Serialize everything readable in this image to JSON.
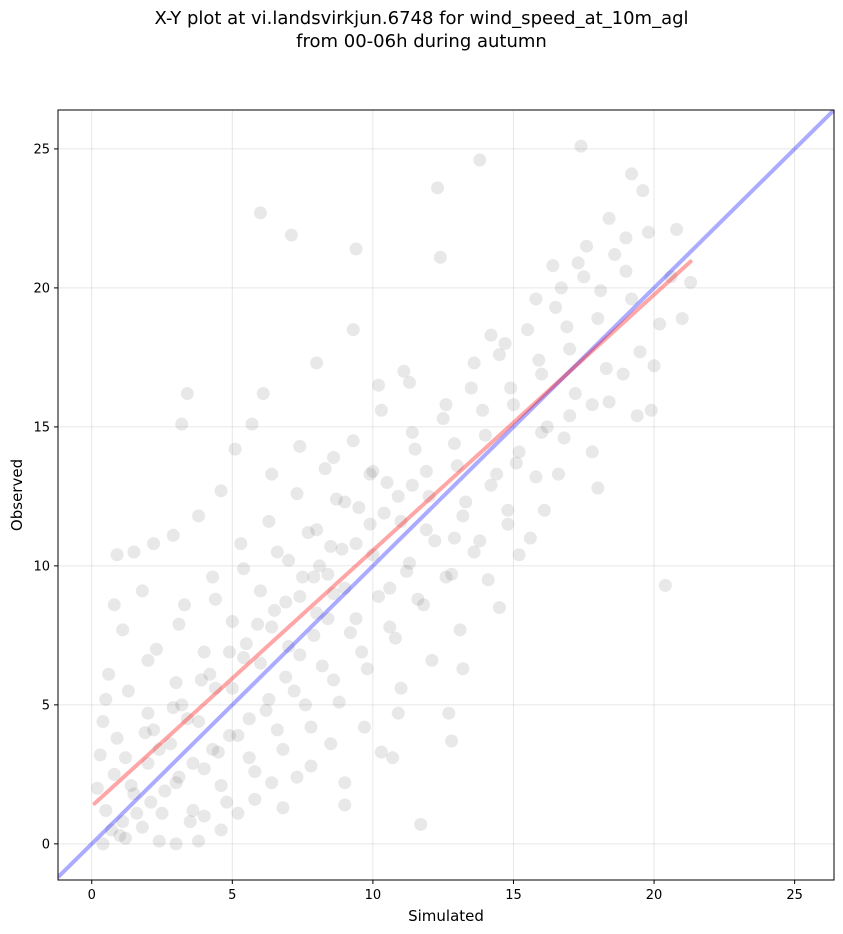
{
  "chart_data": {
    "type": "scatter",
    "title_line1": "X-Y plot at vi.landsvirkjun.6748 for wind_speed_at_10m_agl",
    "title_line2": "from 00-06h during autumn",
    "xlabel": "Simulated",
    "ylabel": "Observed",
    "xlim": [
      -1.2,
      26.4
    ],
    "ylim": [
      -1.3,
      26.4
    ],
    "x_ticks": [
      0,
      5,
      10,
      15,
      20,
      25
    ],
    "y_ticks": [
      0,
      5,
      10,
      15,
      20,
      25
    ],
    "grid": true,
    "point_color": "#404040",
    "point_opacity": 0.12,
    "identity_line": {
      "color": "#0000ff",
      "opacity": 0.33,
      "x": [
        -1.2,
        26.4
      ],
      "y": [
        -1.2,
        26.4
      ]
    },
    "fit_line": {
      "color": "#ff0000",
      "opacity": 0.35,
      "x": [
        0.1,
        21.3
      ],
      "y": [
        1.45,
        20.95
      ]
    },
    "points": [
      [
        0.5,
        1.2
      ],
      [
        0.8,
        2.5
      ],
      [
        1.0,
        0.3
      ],
      [
        1.2,
        3.1
      ],
      [
        1.5,
        1.8
      ],
      [
        1.8,
        0.6
      ],
      [
        2.0,
        2.9
      ],
      [
        2.2,
        4.1
      ],
      [
        2.5,
        1.1
      ],
      [
        2.8,
        3.6
      ],
      [
        3.0,
        2.2
      ],
      [
        3.2,
        5.0
      ],
      [
        3.5,
        0.8
      ],
      [
        3.8,
        4.4
      ],
      [
        4.0,
        2.7
      ],
      [
        4.2,
        6.1
      ],
      [
        4.5,
        3.3
      ],
      [
        4.8,
        1.5
      ],
      [
        5.0,
        5.6
      ],
      [
        5.2,
        3.9
      ],
      [
        5.5,
        7.2
      ],
      [
        5.8,
        2.6
      ],
      [
        6.0,
        6.5
      ],
      [
        6.2,
        4.8
      ],
      [
        6.5,
        8.4
      ],
      [
        6.8,
        3.4
      ],
      [
        7.0,
        7.1
      ],
      [
        7.2,
        5.5
      ],
      [
        7.5,
        9.6
      ],
      [
        7.8,
        4.2
      ],
      [
        8.0,
        8.3
      ],
      [
        8.2,
        6.4
      ],
      [
        8.5,
        10.7
      ],
      [
        8.8,
        5.1
      ],
      [
        9.0,
        9.2
      ],
      [
        9.2,
        7.6
      ],
      [
        9.5,
        12.1
      ],
      [
        9.8,
        6.3
      ],
      [
        10.0,
        10.4
      ],
      [
        10.2,
        8.9
      ],
      [
        10.5,
        13.0
      ],
      [
        10.8,
        7.4
      ],
      [
        11.0,
        11.6
      ],
      [
        11.2,
        9.8
      ],
      [
        11.5,
        14.2
      ],
      [
        11.8,
        8.6
      ],
      [
        12.0,
        12.5
      ],
      [
        12.2,
        10.9
      ],
      [
        12.5,
        15.3
      ],
      [
        12.8,
        9.7
      ],
      [
        13.0,
        13.6
      ],
      [
        13.2,
        11.8
      ],
      [
        13.5,
        16.4
      ],
      [
        13.8,
        10.9
      ],
      [
        14.0,
        14.7
      ],
      [
        14.2,
        12.9
      ],
      [
        14.5,
        17.6
      ],
      [
        14.8,
        12.0
      ],
      [
        15.0,
        15.8
      ],
      [
        15.2,
        14.1
      ],
      [
        15.5,
        18.5
      ],
      [
        15.8,
        13.2
      ],
      [
        16.0,
        16.9
      ],
      [
        16.2,
        15.0
      ],
      [
        16.5,
        19.3
      ],
      [
        16.8,
        14.6
      ],
      [
        17.0,
        17.8
      ],
      [
        17.2,
        16.2
      ],
      [
        17.5,
        20.4
      ],
      [
        17.8,
        15.8
      ],
      [
        18.0,
        18.9
      ],
      [
        18.3,
        17.1
      ],
      [
        18.6,
        21.2
      ],
      [
        18.9,
        16.9
      ],
      [
        19.2,
        19.6
      ],
      [
        19.5,
        17.7
      ],
      [
        19.8,
        22.0
      ],
      [
        20.2,
        18.7
      ],
      [
        20.6,
        20.4
      ],
      [
        21.0,
        18.9
      ],
      [
        21.3,
        20.2
      ],
      [
        20.4,
        9.3
      ],
      [
        17.4,
        25.1
      ],
      [
        13.8,
        24.6
      ],
      [
        12.3,
        23.6
      ],
      [
        6.0,
        22.7
      ],
      [
        7.1,
        21.9
      ],
      [
        9.4,
        21.4
      ],
      [
        19.2,
        24.1
      ],
      [
        19.6,
        23.5
      ],
      [
        11.7,
        0.7
      ],
      [
        13.2,
        6.3
      ],
      [
        9.0,
        1.4
      ],
      [
        6.1,
        16.2
      ],
      [
        3.4,
        16.2
      ],
      [
        3.2,
        15.1
      ],
      [
        5.7,
        15.1
      ],
      [
        8.0,
        17.3
      ],
      [
        9.3,
        18.5
      ],
      [
        12.4,
        21.1
      ],
      [
        14.2,
        18.3
      ],
      [
        16.7,
        20.0
      ],
      [
        18.0,
        12.8
      ],
      [
        15.2,
        10.4
      ],
      [
        16.1,
        12.0
      ],
      [
        0.9,
        10.4
      ],
      [
        1.5,
        10.5
      ],
      [
        2.2,
        10.8
      ],
      [
        0.8,
        8.6
      ],
      [
        1.8,
        9.1
      ],
      [
        2.9,
        11.1
      ],
      [
        3.8,
        11.8
      ],
      [
        4.6,
        12.7
      ],
      [
        5.1,
        14.2
      ],
      [
        6.4,
        13.3
      ],
      [
        7.4,
        14.3
      ],
      [
        8.6,
        13.9
      ],
      [
        10.2,
        16.5
      ],
      [
        11.1,
        17.0
      ],
      [
        10.3,
        3.3
      ],
      [
        10.7,
        3.1
      ],
      [
        7.8,
        2.8
      ],
      [
        6.8,
        1.3
      ],
      [
        5.8,
        1.6
      ],
      [
        9.0,
        2.2
      ],
      [
        2.4,
        0.1
      ],
      [
        3.0,
        0.0
      ],
      [
        3.8,
        0.1
      ],
      [
        0.4,
        0.0
      ],
      [
        1.2,
        0.2
      ],
      [
        4.6,
        0.5
      ],
      [
        0.2,
        2.0
      ],
      [
        0.3,
        3.2
      ],
      [
        0.4,
        4.4
      ],
      [
        0.5,
        5.2
      ],
      [
        0.6,
        6.1
      ],
      [
        1.1,
        7.7
      ],
      [
        2.0,
        6.6
      ],
      [
        3.1,
        7.9
      ],
      [
        4.4,
        8.8
      ],
      [
        5.4,
        9.9
      ],
      [
        6.6,
        10.5
      ],
      [
        7.7,
        11.2
      ],
      [
        8.7,
        12.4
      ],
      [
        9.9,
        13.3
      ],
      [
        11.4,
        14.8
      ],
      [
        12.6,
        15.8
      ],
      [
        13.6,
        17.3
      ],
      [
        14.7,
        18.0
      ],
      [
        15.8,
        19.6
      ],
      [
        17.3,
        20.9
      ],
      [
        18.1,
        19.9
      ],
      [
        19.0,
        20.6
      ],
      [
        14.1,
        9.5
      ],
      [
        14.5,
        8.5
      ],
      [
        13.1,
        7.7
      ],
      [
        12.1,
        6.6
      ],
      [
        11.0,
        5.6
      ],
      [
        10.9,
        4.7
      ],
      [
        9.7,
        4.2
      ],
      [
        8.5,
        3.6
      ],
      [
        7.3,
        2.4
      ],
      [
        6.4,
        2.2
      ],
      [
        5.2,
        1.1
      ],
      [
        4.0,
        1.0
      ],
      [
        12.8,
        3.7
      ],
      [
        12.7,
        4.7
      ],
      [
        14.8,
        11.5
      ],
      [
        15.6,
        11.0
      ],
      [
        16.6,
        13.3
      ],
      [
        17.8,
        14.1
      ],
      [
        18.4,
        15.9
      ],
      [
        19.4,
        15.4
      ],
      [
        19.9,
        15.6
      ],
      [
        20.0,
        17.2
      ],
      [
        16.4,
        20.8
      ],
      [
        17.6,
        21.5
      ],
      [
        18.4,
        22.5
      ],
      [
        19.0,
        21.8
      ],
      [
        20.8,
        22.1
      ],
      [
        8.1,
        10.0
      ],
      [
        8.6,
        9.0
      ],
      [
        9.4,
        8.1
      ],
      [
        10.6,
        9.2
      ],
      [
        11.3,
        10.1
      ],
      [
        11.9,
        11.3
      ],
      [
        12.9,
        11.0
      ],
      [
        13.3,
        12.3
      ],
      [
        14.4,
        13.3
      ],
      [
        15.1,
        13.7
      ],
      [
        16.0,
        14.8
      ],
      [
        17.0,
        15.4
      ],
      [
        6.9,
        6.0
      ],
      [
        7.4,
        6.8
      ],
      [
        7.9,
        7.5
      ],
      [
        8.4,
        8.1
      ],
      [
        5.6,
        4.5
      ],
      [
        6.3,
        5.2
      ],
      [
        4.9,
        3.9
      ],
      [
        4.3,
        3.4
      ],
      [
        3.6,
        2.9
      ],
      [
        3.1,
        2.4
      ],
      [
        2.6,
        1.9
      ],
      [
        2.1,
        1.5
      ],
      [
        1.6,
        1.1
      ],
      [
        1.1,
        0.8
      ],
      [
        0.7,
        0.5
      ],
      [
        1.4,
        2.1
      ],
      [
        2.4,
        3.4
      ],
      [
        3.4,
        4.5
      ],
      [
        4.4,
        5.6
      ],
      [
        5.4,
        6.7
      ],
      [
        6.4,
        7.8
      ],
      [
        7.4,
        8.9
      ],
      [
        8.4,
        9.7
      ],
      [
        9.4,
        10.8
      ],
      [
        10.4,
        11.9
      ],
      [
        11.4,
        12.9
      ],
      [
        2.0,
        4.7
      ],
      [
        3.0,
        5.8
      ],
      [
        4.0,
        6.9
      ],
      [
        5.0,
        8.0
      ],
      [
        6.0,
        9.1
      ],
      [
        7.0,
        10.2
      ],
      [
        8.0,
        11.3
      ],
      [
        9.0,
        12.3
      ],
      [
        10.0,
        13.4
      ],
      [
        1.3,
        5.5
      ],
      [
        2.3,
        7.0
      ],
      [
        3.3,
        8.6
      ],
      [
        4.3,
        9.6
      ],
      [
        5.3,
        10.8
      ],
      [
        6.3,
        11.6
      ],
      [
        7.3,
        12.6
      ],
      [
        8.3,
        13.5
      ],
      [
        9.3,
        14.5
      ],
      [
        10.3,
        15.6
      ],
      [
        11.3,
        16.6
      ],
      [
        3.6,
        1.2
      ],
      [
        4.6,
        2.1
      ],
      [
        5.6,
        3.1
      ],
      [
        6.6,
        4.1
      ],
      [
        7.6,
        5.0
      ],
      [
        8.6,
        5.9
      ],
      [
        9.6,
        6.9
      ],
      [
        10.6,
        7.8
      ],
      [
        11.6,
        8.8
      ],
      [
        12.6,
        9.6
      ],
      [
        13.6,
        10.5
      ],
      [
        0.9,
        3.8
      ],
      [
        1.9,
        4.0
      ],
      [
        2.9,
        4.9
      ],
      [
        3.9,
        5.9
      ],
      [
        4.9,
        6.9
      ],
      [
        5.9,
        7.9
      ],
      [
        6.9,
        8.7
      ],
      [
        7.9,
        9.6
      ],
      [
        8.9,
        10.6
      ],
      [
        9.9,
        11.5
      ],
      [
        10.9,
        12.5
      ],
      [
        11.9,
        13.4
      ],
      [
        12.9,
        14.4
      ],
      [
        13.9,
        15.6
      ],
      [
        14.9,
        16.4
      ],
      [
        15.9,
        17.4
      ],
      [
        16.9,
        18.6
      ]
    ]
  }
}
